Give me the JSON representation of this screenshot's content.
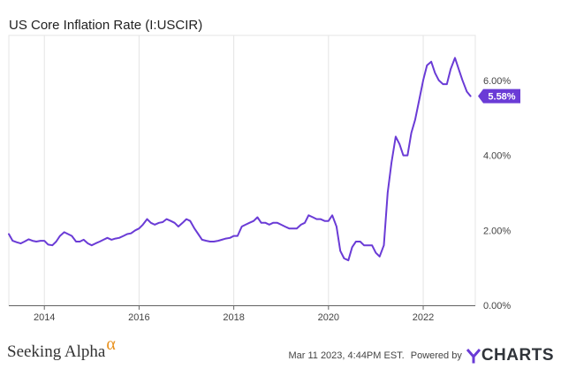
{
  "chart_data": {
    "type": "line",
    "title": "US Core Inflation Rate (I:USCIR)",
    "xlabel": "",
    "ylabel": "",
    "xlim": [
      2013.25,
      2023.1
    ],
    "ylim": [
      0,
      7.2
    ],
    "x_ticks": [
      "2014",
      "2016",
      "2018",
      "2020",
      "2022"
    ],
    "x_tick_values": [
      2014,
      2016,
      2018,
      2020,
      2022
    ],
    "y_ticks": [
      "0.00%",
      "2.00%",
      "4.00%",
      "6.00%"
    ],
    "y_tick_values": [
      0,
      2,
      4,
      6
    ],
    "grid": "vertical",
    "series": [
      {
        "color": "#6a3bd6",
        "last_value_label": "5.58%",
        "points": [
          [
            2013.25,
            1.9
          ],
          [
            2013.33,
            1.72
          ],
          [
            2013.42,
            1.68
          ],
          [
            2013.5,
            1.65
          ],
          [
            2013.58,
            1.7
          ],
          [
            2013.67,
            1.76
          ],
          [
            2013.75,
            1.72
          ],
          [
            2013.83,
            1.7
          ],
          [
            2013.92,
            1.72
          ],
          [
            2014.0,
            1.72
          ],
          [
            2014.08,
            1.62
          ],
          [
            2014.17,
            1.6
          ],
          [
            2014.25,
            1.7
          ],
          [
            2014.33,
            1.85
          ],
          [
            2014.42,
            1.95
          ],
          [
            2014.5,
            1.9
          ],
          [
            2014.58,
            1.85
          ],
          [
            2014.67,
            1.7
          ],
          [
            2014.75,
            1.7
          ],
          [
            2014.83,
            1.75
          ],
          [
            2014.92,
            1.65
          ],
          [
            2015.0,
            1.6
          ],
          [
            2015.08,
            1.65
          ],
          [
            2015.17,
            1.7
          ],
          [
            2015.25,
            1.75
          ],
          [
            2015.33,
            1.8
          ],
          [
            2015.42,
            1.75
          ],
          [
            2015.5,
            1.78
          ],
          [
            2015.58,
            1.8
          ],
          [
            2015.67,
            1.85
          ],
          [
            2015.75,
            1.9
          ],
          [
            2015.83,
            1.92
          ],
          [
            2015.92,
            2.0
          ],
          [
            2016.0,
            2.05
          ],
          [
            2016.08,
            2.15
          ],
          [
            2016.17,
            2.3
          ],
          [
            2016.25,
            2.2
          ],
          [
            2016.33,
            2.15
          ],
          [
            2016.42,
            2.2
          ],
          [
            2016.5,
            2.22
          ],
          [
            2016.58,
            2.3
          ],
          [
            2016.67,
            2.25
          ],
          [
            2016.75,
            2.2
          ],
          [
            2016.83,
            2.1
          ],
          [
            2016.92,
            2.2
          ],
          [
            2017.0,
            2.3
          ],
          [
            2017.08,
            2.25
          ],
          [
            2017.17,
            2.05
          ],
          [
            2017.25,
            1.9
          ],
          [
            2017.33,
            1.75
          ],
          [
            2017.42,
            1.72
          ],
          [
            2017.5,
            1.7
          ],
          [
            2017.58,
            1.7
          ],
          [
            2017.67,
            1.72
          ],
          [
            2017.75,
            1.75
          ],
          [
            2017.83,
            1.78
          ],
          [
            2017.92,
            1.8
          ],
          [
            2018.0,
            1.85
          ],
          [
            2018.08,
            1.85
          ],
          [
            2018.17,
            2.1
          ],
          [
            2018.25,
            2.15
          ],
          [
            2018.33,
            2.2
          ],
          [
            2018.42,
            2.25
          ],
          [
            2018.5,
            2.35
          ],
          [
            2018.58,
            2.2
          ],
          [
            2018.67,
            2.2
          ],
          [
            2018.75,
            2.15
          ],
          [
            2018.83,
            2.2
          ],
          [
            2018.92,
            2.2
          ],
          [
            2019.0,
            2.15
          ],
          [
            2019.08,
            2.1
          ],
          [
            2019.17,
            2.05
          ],
          [
            2019.25,
            2.05
          ],
          [
            2019.33,
            2.05
          ],
          [
            2019.42,
            2.15
          ],
          [
            2019.5,
            2.2
          ],
          [
            2019.58,
            2.4
          ],
          [
            2019.67,
            2.35
          ],
          [
            2019.75,
            2.3
          ],
          [
            2019.83,
            2.3
          ],
          [
            2019.92,
            2.25
          ],
          [
            2020.0,
            2.25
          ],
          [
            2020.08,
            2.4
          ],
          [
            2020.17,
            2.1
          ],
          [
            2020.25,
            1.45
          ],
          [
            2020.33,
            1.25
          ],
          [
            2020.42,
            1.2
          ],
          [
            2020.5,
            1.55
          ],
          [
            2020.58,
            1.7
          ],
          [
            2020.67,
            1.7
          ],
          [
            2020.75,
            1.6
          ],
          [
            2020.83,
            1.6
          ],
          [
            2020.92,
            1.6
          ],
          [
            2021.0,
            1.4
          ],
          [
            2021.08,
            1.3
          ],
          [
            2021.17,
            1.6
          ],
          [
            2021.25,
            3.0
          ],
          [
            2021.33,
            3.8
          ],
          [
            2021.42,
            4.5
          ],
          [
            2021.5,
            4.3
          ],
          [
            2021.58,
            4.0
          ],
          [
            2021.67,
            4.0
          ],
          [
            2021.75,
            4.6
          ],
          [
            2021.83,
            4.95
          ],
          [
            2021.92,
            5.5
          ],
          [
            2022.0,
            6.0
          ],
          [
            2022.08,
            6.4
          ],
          [
            2022.17,
            6.5
          ],
          [
            2022.25,
            6.2
          ],
          [
            2022.33,
            6.0
          ],
          [
            2022.42,
            5.9
          ],
          [
            2022.5,
            5.9
          ],
          [
            2022.58,
            6.3
          ],
          [
            2022.67,
            6.6
          ],
          [
            2022.75,
            6.3
          ],
          [
            2022.83,
            6.0
          ],
          [
            2022.92,
            5.7
          ],
          [
            2023.0,
            5.58
          ]
        ]
      }
    ]
  },
  "footer": {
    "brand": "Seeking Alpha",
    "brand_alpha": "α",
    "timestamp": "Mar 11 2023, 4:44PM EST.",
    "powered_by": "Powered by",
    "logo_text": "CHARTS",
    "colors": {
      "alpha": "#e8901c",
      "logo": "#30343a",
      "logo_y": "#6a3bd6"
    }
  }
}
